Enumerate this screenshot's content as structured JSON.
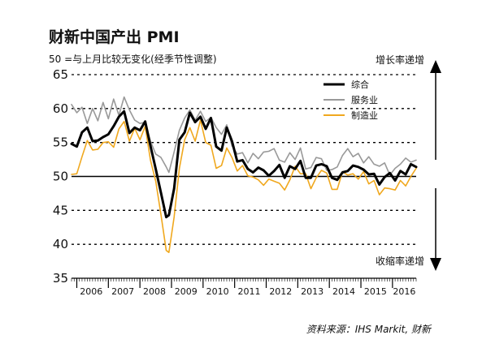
{
  "chart_data": {
    "type": "line",
    "title": "财新中国产出 PMI",
    "subtitle": "50 =与上月比较无变化(经季节性调整)",
    "ylim": [
      35,
      65
    ],
    "yticks": [
      35,
      40,
      45,
      50,
      55,
      60,
      65
    ],
    "reference_line": 50,
    "grid": "dashed horizontal",
    "legend_position": "top-right",
    "x_start": "2005-11",
    "x_end": "2016-10",
    "year_labels": [
      "2006",
      "2007",
      "2008",
      "2009",
      "2010",
      "2011",
      "2012",
      "2013",
      "2014",
      "2015",
      "2016"
    ],
    "arrow_up_label": "增长率递增",
    "arrow_down_label": "收缩率递增",
    "source": "资料来源：IHS Markit, 财新",
    "series": [
      {
        "name": "综合",
        "color": "#000000",
        "points": [
          [
            "2005-11",
            54.8
          ],
          [
            "2006-01",
            54.4
          ],
          [
            "2006-03",
            56.5
          ],
          [
            "2006-05",
            57.2
          ],
          [
            "2006-07",
            55.2
          ],
          [
            "2006-09",
            55.3
          ],
          [
            "2006-11",
            55.8
          ],
          [
            "2007-01",
            56.2
          ],
          [
            "2007-03",
            57.4
          ],
          [
            "2007-05",
            58.8
          ],
          [
            "2007-07",
            59.6
          ],
          [
            "2007-09",
            56.4
          ],
          [
            "2007-11",
            57.2
          ],
          [
            "2008-01",
            56.8
          ],
          [
            "2008-03",
            58.1
          ],
          [
            "2008-05",
            54.5
          ],
          [
            "2008-07",
            51.1
          ],
          [
            "2008-09",
            47.6
          ],
          [
            "2008-11",
            44.0
          ],
          [
            "2008-12",
            44.3
          ],
          [
            "2009-02",
            48.2
          ],
          [
            "2009-04",
            55.4
          ],
          [
            "2009-06",
            56.5
          ],
          [
            "2009-08",
            59.4
          ],
          [
            "2009-10",
            58.0
          ],
          [
            "2009-12",
            58.8
          ],
          [
            "2010-02",
            57.0
          ],
          [
            "2010-04",
            58.6
          ],
          [
            "2010-06",
            54.4
          ],
          [
            "2010-08",
            53.8
          ],
          [
            "2010-10",
            57.2
          ],
          [
            "2010-12",
            55.2
          ],
          [
            "2011-02",
            52.2
          ],
          [
            "2011-04",
            52.4
          ],
          [
            "2011-06",
            51.1
          ],
          [
            "2011-08",
            50.6
          ],
          [
            "2011-10",
            51.3
          ],
          [
            "2011-12",
            50.9
          ],
          [
            "2012-02",
            50.1
          ],
          [
            "2012-04",
            50.8
          ],
          [
            "2012-06",
            51.7
          ],
          [
            "2012-08",
            49.8
          ],
          [
            "2012-10",
            51.5
          ],
          [
            "2012-12",
            51.1
          ],
          [
            "2013-02",
            52.3
          ],
          [
            "2013-04",
            49.8
          ],
          [
            "2013-06",
            49.8
          ],
          [
            "2013-08",
            51.6
          ],
          [
            "2013-10",
            51.8
          ],
          [
            "2013-12",
            51.5
          ],
          [
            "2014-02",
            49.8
          ],
          [
            "2014-04",
            49.5
          ],
          [
            "2014-06",
            50.6
          ],
          [
            "2014-08",
            50.8
          ],
          [
            "2014-10",
            51.6
          ],
          [
            "2014-12",
            51.4
          ],
          [
            "2015-02",
            51.0
          ],
          [
            "2015-04",
            50.3
          ],
          [
            "2015-06",
            50.4
          ],
          [
            "2015-08",
            48.8
          ],
          [
            "2015-10",
            49.9
          ],
          [
            "2015-12",
            50.5
          ],
          [
            "2016-02",
            49.4
          ],
          [
            "2016-04",
            50.8
          ],
          [
            "2016-06",
            50.3
          ],
          [
            "2016-08",
            51.8
          ],
          [
            "2016-10",
            51.4
          ]
        ]
      },
      {
        "name": "服务业",
        "color": "#999999",
        "points": [
          [
            "2005-11",
            60.6
          ],
          [
            "2006-01",
            59.4
          ],
          [
            "2006-03",
            60.2
          ],
          [
            "2006-05",
            57.8
          ],
          [
            "2006-07",
            60.0
          ],
          [
            "2006-09",
            58.2
          ],
          [
            "2006-11",
            60.9
          ],
          [
            "2007-01",
            58.5
          ],
          [
            "2007-03",
            61.4
          ],
          [
            "2007-05",
            59.0
          ],
          [
            "2007-07",
            61.7
          ],
          [
            "2007-09",
            59.8
          ],
          [
            "2007-11",
            58.3
          ],
          [
            "2008-01",
            57.8
          ],
          [
            "2008-03",
            58.0
          ],
          [
            "2008-05",
            55.2
          ],
          [
            "2008-07",
            53.3
          ],
          [
            "2008-09",
            52.8
          ],
          [
            "2008-11",
            51.4
          ],
          [
            "2008-12",
            50.6
          ],
          [
            "2009-02",
            53.6
          ],
          [
            "2009-04",
            56.8
          ],
          [
            "2009-06",
            58.6
          ],
          [
            "2009-08",
            59.8
          ],
          [
            "2009-10",
            58.3
          ],
          [
            "2009-12",
            59.6
          ],
          [
            "2010-02",
            58.1
          ],
          [
            "2010-04",
            58.7
          ],
          [
            "2010-06",
            57.2
          ],
          [
            "2010-08",
            56.2
          ],
          [
            "2010-10",
            57.6
          ],
          [
            "2010-12",
            54.5
          ],
          [
            "2011-02",
            53.3
          ],
          [
            "2011-04",
            53.5
          ],
          [
            "2011-06",
            52.0
          ],
          [
            "2011-08",
            53.4
          ],
          [
            "2011-10",
            52.6
          ],
          [
            "2011-12",
            53.6
          ],
          [
            "2012-02",
            53.7
          ],
          [
            "2012-04",
            54.1
          ],
          [
            "2012-06",
            52.4
          ],
          [
            "2012-08",
            52.1
          ],
          [
            "2012-10",
            53.5
          ],
          [
            "2012-12",
            52.5
          ],
          [
            "2013-02",
            54.2
          ],
          [
            "2013-04",
            51.1
          ],
          [
            "2013-06",
            51.3
          ],
          [
            "2013-08",
            52.8
          ],
          [
            "2013-10",
            52.6
          ],
          [
            "2013-12",
            50.9
          ],
          [
            "2014-02",
            51.0
          ],
          [
            "2014-04",
            51.4
          ],
          [
            "2014-06",
            53.1
          ],
          [
            "2014-08",
            54.1
          ],
          [
            "2014-10",
            52.9
          ],
          [
            "2014-12",
            53.4
          ],
          [
            "2015-02",
            52.0
          ],
          [
            "2015-04",
            52.9
          ],
          [
            "2015-06",
            51.8
          ],
          [
            "2015-08",
            51.5
          ],
          [
            "2015-10",
            52.0
          ],
          [
            "2015-12",
            50.2
          ],
          [
            "2016-02",
            51.2
          ],
          [
            "2016-04",
            51.8
          ],
          [
            "2016-06",
            52.7
          ],
          [
            "2016-08",
            52.1
          ],
          [
            "2016-10",
            52.4
          ]
        ]
      },
      {
        "name": "制造业",
        "color": "#f0a81e",
        "points": [
          [
            "2005-11",
            50.3
          ],
          [
            "2006-01",
            50.4
          ],
          [
            "2006-03",
            52.9
          ],
          [
            "2006-05",
            55.3
          ],
          [
            "2006-07",
            53.9
          ],
          [
            "2006-09",
            54.0
          ],
          [
            "2006-11",
            55.0
          ],
          [
            "2007-01",
            55.1
          ],
          [
            "2007-03",
            54.3
          ],
          [
            "2007-05",
            57.0
          ],
          [
            "2007-07",
            58.1
          ],
          [
            "2007-09",
            55.2
          ],
          [
            "2007-11",
            57.1
          ],
          [
            "2008-01",
            55.4
          ],
          [
            "2008-03",
            57.4
          ],
          [
            "2008-05",
            52.4
          ],
          [
            "2008-07",
            49.3
          ],
          [
            "2008-09",
            44.4
          ],
          [
            "2008-11",
            39.1
          ],
          [
            "2008-12",
            38.8
          ],
          [
            "2009-02",
            44.0
          ],
          [
            "2009-04",
            51.2
          ],
          [
            "2009-06",
            55.4
          ],
          [
            "2009-08",
            57.2
          ],
          [
            "2009-10",
            55.2
          ],
          [
            "2009-12",
            58.3
          ],
          [
            "2010-02",
            55.0
          ],
          [
            "2010-04",
            54.6
          ],
          [
            "2010-06",
            51.2
          ],
          [
            "2010-08",
            51.6
          ],
          [
            "2010-10",
            54.2
          ],
          [
            "2010-12",
            52.8
          ],
          [
            "2011-02",
            50.8
          ],
          [
            "2011-04",
            51.6
          ],
          [
            "2011-06",
            50.1
          ],
          [
            "2011-08",
            49.9
          ],
          [
            "2011-10",
            49.5
          ],
          [
            "2011-12",
            48.7
          ],
          [
            "2012-02",
            49.6
          ],
          [
            "2012-04",
            49.3
          ],
          [
            "2012-06",
            49.0
          ],
          [
            "2012-08",
            48.0
          ],
          [
            "2012-10",
            49.5
          ],
          [
            "2012-12",
            51.5
          ],
          [
            "2013-02",
            50.4
          ],
          [
            "2013-04",
            50.4
          ],
          [
            "2013-06",
            48.2
          ],
          [
            "2013-08",
            49.8
          ],
          [
            "2013-10",
            50.9
          ],
          [
            "2013-12",
            50.5
          ],
          [
            "2014-02",
            48.1
          ],
          [
            "2014-04",
            48.1
          ],
          [
            "2014-06",
            50.7
          ],
          [
            "2014-08",
            50.2
          ],
          [
            "2014-10",
            50.4
          ],
          [
            "2014-12",
            49.6
          ],
          [
            "2015-02",
            50.7
          ],
          [
            "2015-04",
            48.9
          ],
          [
            "2015-06",
            49.4
          ],
          [
            "2015-08",
            47.3
          ],
          [
            "2015-10",
            48.3
          ],
          [
            "2015-12",
            48.2
          ],
          [
            "2016-02",
            48.0
          ],
          [
            "2016-04",
            49.4
          ],
          [
            "2016-06",
            48.6
          ],
          [
            "2016-08",
            50.0
          ],
          [
            "2016-10",
            51.2
          ]
        ]
      }
    ]
  }
}
